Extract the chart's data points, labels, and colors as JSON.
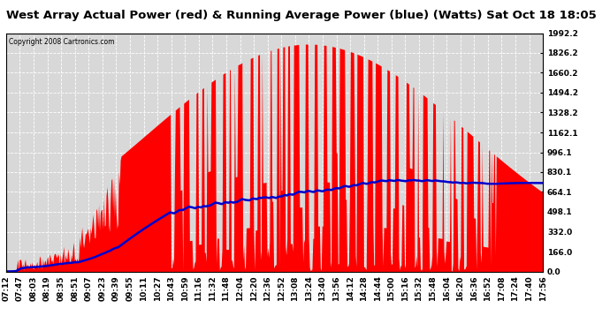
{
  "title": "West Array Actual Power (red) & Running Average Power (blue) (Watts) Sat Oct 18 18:05",
  "copyright": "Copyright 2008 Cartronics.com",
  "yticks": [
    0.0,
    166.0,
    332.0,
    498.1,
    664.1,
    830.1,
    996.1,
    1162.1,
    1328.2,
    1494.2,
    1660.2,
    1826.2,
    1992.2
  ],
  "ymax": 1992.2,
  "ymin": 0.0,
  "xtick_labels": [
    "07:12",
    "07:47",
    "08:03",
    "08:19",
    "08:35",
    "08:51",
    "09:07",
    "09:23",
    "09:39",
    "09:55",
    "10:11",
    "10:27",
    "10:43",
    "10:59",
    "11:16",
    "11:32",
    "11:48",
    "12:04",
    "12:20",
    "12:36",
    "12:52",
    "13:08",
    "13:24",
    "13:40",
    "13:56",
    "14:12",
    "14:28",
    "14:44",
    "15:00",
    "15:16",
    "15:32",
    "15:48",
    "16:04",
    "16:20",
    "16:36",
    "16:52",
    "17:08",
    "17:24",
    "17:40",
    "17:56"
  ],
  "bg_color": "#ffffff",
  "plot_bg_color": "#d8d8d8",
  "grid_color": "#ffffff",
  "actual_color": "#ff0000",
  "avg_color": "#0000cc",
  "title_fontsize": 9.5,
  "tick_fontsize": 6.5
}
